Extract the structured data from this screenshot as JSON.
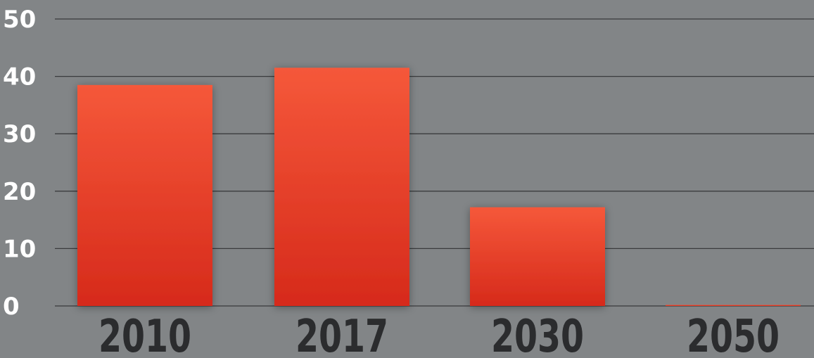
{
  "colors": {
    "background": "#828587",
    "bar_top": "#f5583a",
    "bar_bottom": "#d62a1b",
    "gridline": "#3a3b3d",
    "ytick_text": "#ffffff",
    "xtick_text": "#2b2c2e"
  },
  "chart_data": {
    "type": "bar",
    "title": "",
    "xlabel": "",
    "ylabel": "",
    "categories": [
      "2010",
      "2017",
      "2030",
      "2050"
    ],
    "values": [
      38.5,
      41.5,
      17.2,
      0
    ],
    "ylim": [
      0,
      50
    ],
    "yticks": [
      0,
      10,
      20,
      30,
      40,
      50
    ],
    "grid": true,
    "legend": "none"
  }
}
